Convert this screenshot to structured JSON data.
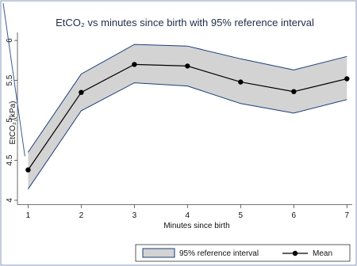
{
  "chart_data": {
    "type": "line",
    "title": "EtCO₂ vs minutes since birth with 95% reference interval",
    "xlabel": "Minutes since birth",
    "ylabel": "EtCO₂ (kPa)",
    "x": [
      1,
      2,
      3,
      4,
      5,
      6,
      7
    ],
    "xlim": [
      0.8,
      7.1
    ],
    "ylim": [
      3.95,
      6.1
    ],
    "x_ticks": [
      1,
      2,
      3,
      4,
      5,
      6,
      7
    ],
    "y_ticks": [
      4,
      4.5,
      5,
      5.5,
      6
    ],
    "y_tick_labels": [
      "4",
      "4.5",
      "5",
      "5.5",
      "6"
    ],
    "grid": false,
    "legend_position": "bottom",
    "series": [
      {
        "name": "Mean",
        "kind": "line-markers",
        "values": [
          4.38,
          5.35,
          5.7,
          5.68,
          5.48,
          5.36,
          5.52
        ]
      },
      {
        "name": "95% reference interval",
        "kind": "band",
        "lower": [
          4.14,
          5.12,
          5.47,
          5.43,
          5.21,
          5.09,
          5.26
        ],
        "upper": [
          4.6,
          5.58,
          5.95,
          5.93,
          5.77,
          5.63,
          5.8
        ]
      }
    ],
    "colors": {
      "band_fill": "#d3d3d3",
      "band_edge": "#1a3f7a",
      "mean_line": "#000000",
      "title": "#1f2d4a",
      "frame": "#1a3f7a"
    }
  }
}
